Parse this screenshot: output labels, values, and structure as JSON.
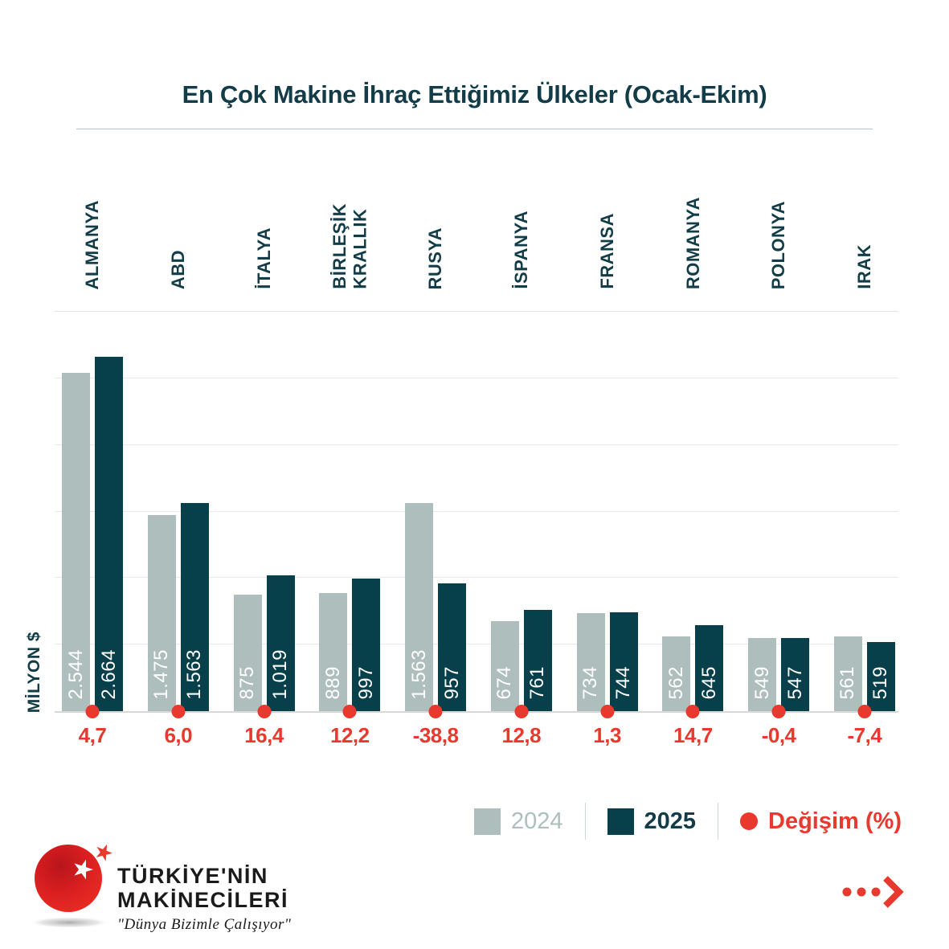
{
  "title": "En Çok Makine İhraç Ettiğimiz Ülkeler (Ocak-Ekim)",
  "ylabel": "MİLYON $",
  "chart_data": {
    "type": "bar",
    "title": "En Çok Makine İhraç Ettiğimiz Ülkeler (Ocak-Ekim)",
    "xlabel": "",
    "ylabel": "MİLYON $",
    "ylim": [
      0,
      3000
    ],
    "grid_step": 500,
    "grid": true,
    "legend_position": "bottom-right",
    "categories": [
      "ALMANYA",
      "ABD",
      "İTALYA",
      "BİRLEŞİK KRALLIK",
      "RUSYA",
      "İSPANYA",
      "FRANSA",
      "ROMANYA",
      "POLONYA",
      "IRAK"
    ],
    "categories_display": [
      "ALMANYA",
      "ABD",
      "İTALYA",
      "BİRLEŞİK\nKRALLIK",
      "RUSYA",
      "İSPANYA",
      "FRANSA",
      "ROMANYA",
      "POLONYA",
      "IRAK"
    ],
    "series": [
      {
        "name": "2024",
        "color": "#aebebd",
        "values": [
          2544,
          1475,
          875,
          889,
          1563,
          674,
          734,
          562,
          549,
          561
        ],
        "labels": [
          "2.544",
          "1.475",
          "875",
          "889",
          "1.563",
          "674",
          "734",
          "562",
          "549",
          "561"
        ]
      },
      {
        "name": "2025",
        "color": "#073f4b",
        "values": [
          2664,
          1563,
          1019,
          997,
          957,
          761,
          744,
          645,
          547,
          519
        ],
        "labels": [
          "2.664",
          "1.563",
          "1.019",
          "997",
          "957",
          "761",
          "744",
          "645",
          "547",
          "519"
        ]
      }
    ],
    "change_pct": {
      "name": "Değişim (%)",
      "color": "#e8392e",
      "values": [
        4.7,
        6.0,
        16.4,
        12.2,
        -38.8,
        12.8,
        1.3,
        14.7,
        -0.4,
        -7.4
      ],
      "labels": [
        "4,7",
        "6,0",
        "16,4",
        "12,2",
        "-38,8",
        "12,8",
        "1,3",
        "14,7",
        "-0,4",
        "-7,4"
      ]
    }
  },
  "legend": {
    "series_2024": "2024",
    "series_2025": "2025",
    "change": "Değişim (%)"
  },
  "colors": {
    "bar_2024": "#aebebd",
    "bar_2025": "#073f4b",
    "accent_red": "#e8392e",
    "text_teal": "#123c47",
    "gridline": "#e9e9e9"
  },
  "logo": {
    "line1": "TÜRKİYE'NİN",
    "line2": "MAKİNECİLERİ",
    "tagline": "\"Dünya Bizimle Çalışıyor\""
  }
}
